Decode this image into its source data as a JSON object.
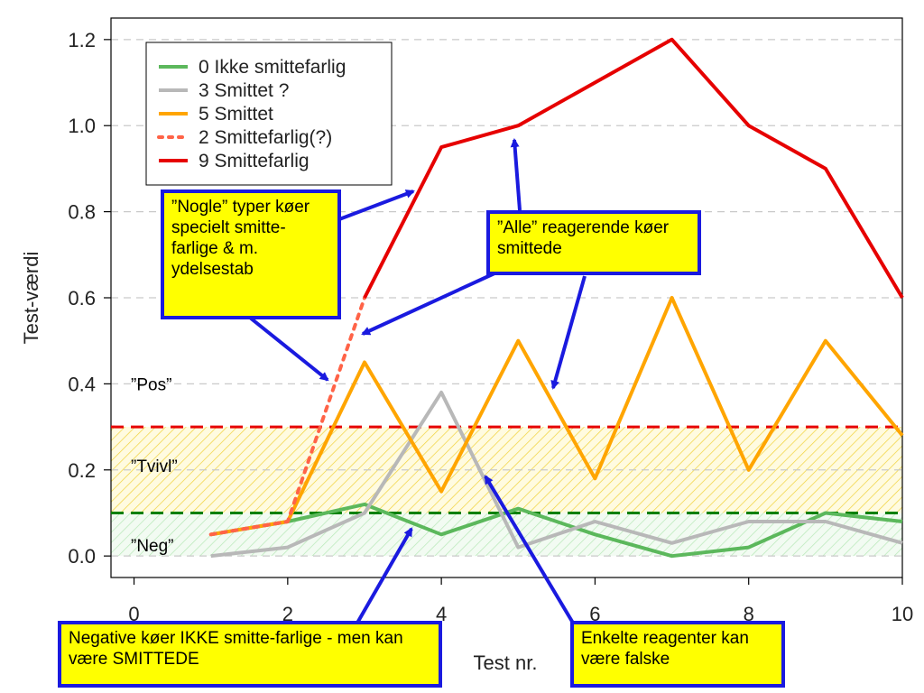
{
  "chart_data": {
    "type": "line",
    "xlabel": "Test nr.",
    "ylabel": "Test-værdi",
    "xlim": [
      -0.3,
      10
    ],
    "ylim": [
      -0.05,
      1.25
    ],
    "x_ticks": [
      "0",
      "2",
      "4",
      "6",
      "8",
      "10"
    ],
    "y_ticks": [
      "0.0",
      "0.2",
      "0.4",
      "0.6",
      "0.8",
      "1.0",
      "1.2"
    ],
    "grid": "horizontal dashed",
    "legend_position": "top-left",
    "series": [
      {
        "name": "0 Ikke smittefarlig",
        "color": "#5cb85c",
        "style": "solid",
        "x": [
          1,
          2,
          3,
          4,
          5,
          6,
          7,
          8,
          9,
          10
        ],
        "y": [
          0.05,
          0.08,
          0.12,
          0.05,
          0.11,
          0.05,
          0.0,
          0.02,
          0.1,
          0.08
        ]
      },
      {
        "name": "3 Smittet ?",
        "color": "#b8b8b8",
        "style": "solid",
        "x": [
          1,
          2,
          3,
          4,
          5,
          6,
          7,
          8,
          9,
          10
        ],
        "y": [
          0.0,
          0.02,
          0.1,
          0.38,
          0.02,
          0.08,
          0.03,
          0.08,
          0.08,
          0.03
        ]
      },
      {
        "name": "5 Smittet",
        "color": "#ffa500",
        "style": "solid",
        "x": [
          1,
          2,
          3,
          4,
          5,
          6,
          7,
          8,
          9,
          10
        ],
        "y": [
          0.05,
          0.08,
          0.45,
          0.15,
          0.5,
          0.18,
          0.6,
          0.2,
          0.5,
          0.28
        ]
      },
      {
        "name": "2 Smittefarlig(?)",
        "color": "#ff6347",
        "style": "dotted",
        "x": [
          1,
          2,
          3
        ],
        "y": [
          0.05,
          0.08,
          0.6
        ]
      },
      {
        "name": "9 Smittefarlig",
        "color": "#e60000",
        "style": "solid",
        "x": [
          3,
          4,
          5,
          6,
          7,
          8,
          9,
          10
        ],
        "y": [
          0.6,
          0.95,
          1.0,
          1.1,
          1.2,
          1.0,
          0.9,
          0.6
        ]
      }
    ],
    "thresholds": [
      {
        "y": 0.3,
        "color": "#e60000",
        "style": "dashed"
      },
      {
        "y": 0.1,
        "color": "#008000",
        "style": "dashed"
      }
    ],
    "bands": [
      {
        "from": 0.1,
        "to": 0.3,
        "color": "#f5dc3c",
        "pattern": "hatched"
      },
      {
        "from": 0.0,
        "to": 0.1,
        "color": "#9be09b",
        "pattern": "hatched"
      }
    ],
    "zone_labels": [
      {
        "text": "”Pos”",
        "y": 0.4
      },
      {
        "text": "”Tvivl”",
        "y": 0.21
      },
      {
        "text": "”Neg”",
        "y": 0.025
      }
    ],
    "annotations": [
      "”Nogle” typer køer specielt smitte-farlige & m. ydelsestab",
      "”Alle” reagerende køer smittede",
      "Negative køer IKKE smitte-farlige - men kan være SMITTEDE",
      "Enkelte reagenter kan være falske"
    ],
    "annotation_color": "#ffff00",
    "arrow_color": "#1a1adf"
  }
}
